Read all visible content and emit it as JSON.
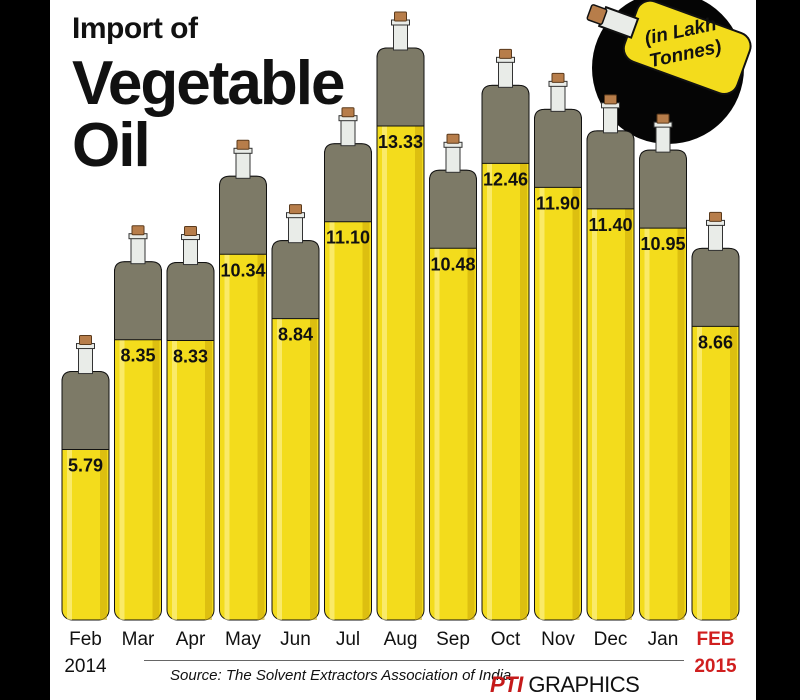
{
  "chart_data": {
    "type": "bar",
    "title": "Import of Vegetable Oil",
    "title_lines": [
      "Import of",
      "Vegetable",
      "Oil"
    ],
    "unit_note": "(in Lakh Tonnes)",
    "categories": [
      "Feb",
      "Mar",
      "Apr",
      "May",
      "Jun",
      "Jul",
      "Aug",
      "Sep",
      "Oct",
      "Nov",
      "Dec",
      "Jan",
      "FEB"
    ],
    "year_labels": [
      {
        "index": 0,
        "text": "2014"
      },
      {
        "index": 12,
        "text": "2015"
      }
    ],
    "highlight_index": 12,
    "series": [
      {
        "values": [
          5.79,
          8.35,
          8.33,
          10.34,
          8.84,
          11.1,
          13.33,
          10.48,
          12.46,
          11.9,
          11.4,
          10.95,
          8.66
        ]
      }
    ],
    "value_labels": [
      "5.79",
      "8.35",
      "8.33",
      "10.34",
      "8.84",
      "11.10",
      "13.33",
      "10.48",
      "12.46",
      "11.90",
      "11.40",
      "10.95",
      "8.66"
    ],
    "ylim": [
      0,
      13.33
    ],
    "xlabel": "",
    "ylabel": "",
    "grid": false,
    "colors": {
      "oil": "#f3dc1c",
      "oil_dark": "#e0c410",
      "oil_shadow": "#caa808",
      "bottle_top": "#7d7a67",
      "neck": "#e9ece8",
      "cork": "#b77d4a",
      "highlight": "#d01f1f"
    }
  },
  "source": "Source: The Solvent Extractors Association of India",
  "credit": {
    "brand": "PTI",
    "text": "GRAPHICS"
  }
}
